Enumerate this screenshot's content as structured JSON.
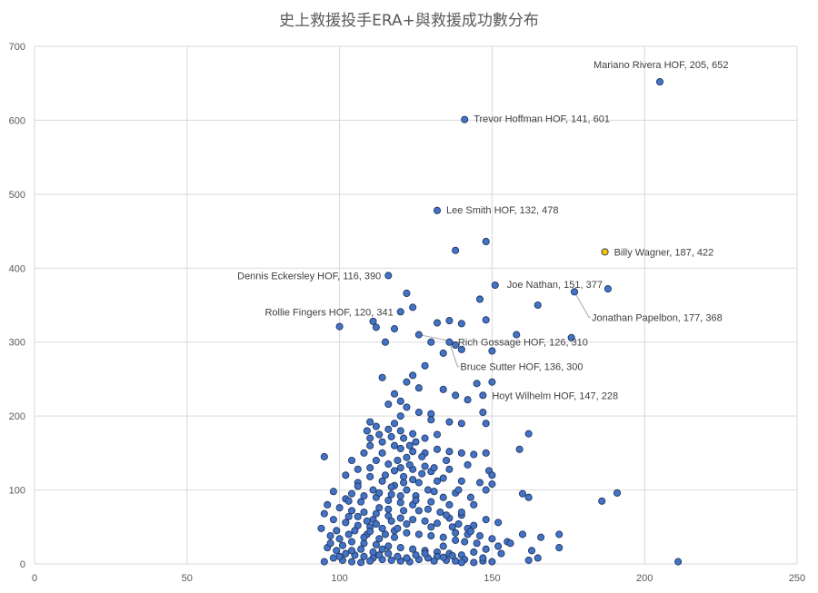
{
  "chart_data": {
    "type": "scatter",
    "title": "史上救援投手ERA+與救援成功數分布",
    "xlabel": "",
    "ylabel": "",
    "xlim": [
      0,
      250
    ],
    "ylim": [
      0,
      700
    ],
    "x_ticks": [
      "0",
      "50",
      "100",
      "150",
      "200",
      "250"
    ],
    "y_ticks": [
      "0",
      "100",
      "200",
      "300",
      "400",
      "500",
      "600",
      "700"
    ],
    "grid": true,
    "legend": "none",
    "colors": {
      "point": "#4472c4",
      "highlight": "#ffc000",
      "outline": "#1f3864",
      "grid": "#d9d9d9"
    },
    "labeled_points": [
      {
        "x": 205,
        "y": 652,
        "label": "Mariano Rivera HOF, 205, 652",
        "highlight": false
      },
      {
        "x": 141,
        "y": 601,
        "label": "Trevor Hoffman HOF, 141, 601",
        "highlight": false
      },
      {
        "x": 132,
        "y": 478,
        "label": "Lee Smith HOF, 132, 478",
        "highlight": false
      },
      {
        "x": 187,
        "y": 422,
        "label": "Billy Wagner, 187, 422",
        "highlight": true
      },
      {
        "x": 116,
        "y": 390,
        "label": "Dennis Eckersley HOF, 116, 390",
        "highlight": false
      },
      {
        "x": 151,
        "y": 377,
        "label": "Joe Nathan, 151, 377",
        "highlight": false
      },
      {
        "x": 177,
        "y": 368,
        "label": "Jonathan Papelbon, 177, 368",
        "highlight": false
      },
      {
        "x": 120,
        "y": 341,
        "label": "Rollie Fingers HOF, 120, 341",
        "highlight": false
      },
      {
        "x": 126,
        "y": 310,
        "label": "Rich Gossage HOF, 126, 310",
        "highlight": false
      },
      {
        "x": 136,
        "y": 300,
        "label": "Bruce Sutter HOF, 136, 300",
        "highlight": false
      },
      {
        "x": 147,
        "y": 228,
        "label": "Hoyt Wilhelm HOF, 147, 228",
        "highlight": false
      }
    ],
    "points": [
      [
        138,
        424
      ],
      [
        148,
        436
      ],
      [
        188,
        372
      ],
      [
        122,
        366
      ],
      [
        165,
        350
      ],
      [
        146,
        358
      ],
      [
        124,
        347
      ],
      [
        100,
        321
      ],
      [
        111,
        328
      ],
      [
        112,
        320
      ],
      [
        118,
        318
      ],
      [
        132,
        326
      ],
      [
        136,
        329
      ],
      [
        140,
        325
      ],
      [
        148,
        330
      ],
      [
        158,
        310
      ],
      [
        176,
        306
      ],
      [
        115,
        300
      ],
      [
        130,
        300
      ],
      [
        138,
        296
      ],
      [
        140,
        290
      ],
      [
        134,
        285
      ],
      [
        150,
        288
      ],
      [
        124,
        255
      ],
      [
        114,
        252
      ],
      [
        128,
        268
      ],
      [
        122,
        246
      ],
      [
        126,
        238
      ],
      [
        134,
        236
      ],
      [
        138,
        228
      ],
      [
        142,
        222
      ],
      [
        145,
        244
      ],
      [
        150,
        246
      ],
      [
        118,
        230
      ],
      [
        120,
        220
      ],
      [
        116,
        216
      ],
      [
        122,
        212
      ],
      [
        126,
        205
      ],
      [
        130,
        203
      ],
      [
        120,
        200
      ],
      [
        130,
        195
      ],
      [
        136,
        192
      ],
      [
        140,
        190
      ],
      [
        147,
        205
      ],
      [
        148,
        190
      ],
      [
        118,
        190
      ],
      [
        95,
        145
      ],
      [
        110,
        192
      ],
      [
        112,
        186
      ],
      [
        116,
        182
      ],
      [
        120,
        180
      ],
      [
        124,
        176
      ],
      [
        128,
        170
      ],
      [
        132,
        175
      ],
      [
        162,
        176
      ],
      [
        110,
        170
      ],
      [
        114,
        165
      ],
      [
        118,
        160
      ],
      [
        120,
        156
      ],
      [
        124,
        152
      ],
      [
        128,
        150
      ],
      [
        132,
        155
      ],
      [
        136,
        152
      ],
      [
        140,
        150
      ],
      [
        144,
        148
      ],
      [
        148,
        150
      ],
      [
        159,
        155
      ],
      [
        108,
        150
      ],
      [
        104,
        140
      ],
      [
        112,
        140
      ],
      [
        116,
        135
      ],
      [
        120,
        130
      ],
      [
        124,
        128
      ],
      [
        130,
        125
      ],
      [
        136,
        128
      ],
      [
        142,
        134
      ],
      [
        149,
        126
      ],
      [
        106,
        128
      ],
      [
        102,
        120
      ],
      [
        110,
        118
      ],
      [
        114,
        112
      ],
      [
        118,
        106
      ],
      [
        122,
        100
      ],
      [
        126,
        110
      ],
      [
        134,
        116
      ],
      [
        140,
        112
      ],
      [
        146,
        110
      ],
      [
        150,
        108
      ],
      [
        150,
        120
      ],
      [
        148,
        100
      ],
      [
        160,
        95
      ],
      [
        162,
        90
      ],
      [
        98,
        98
      ],
      [
        104,
        95
      ],
      [
        108,
        92
      ],
      [
        112,
        90
      ],
      [
        116,
        86
      ],
      [
        120,
        83
      ],
      [
        124,
        80
      ],
      [
        130,
        84
      ],
      [
        134,
        90
      ],
      [
        138,
        96
      ],
      [
        144,
        80
      ],
      [
        186,
        85
      ],
      [
        191,
        96
      ],
      [
        96,
        80
      ],
      [
        100,
        76
      ],
      [
        104,
        72
      ],
      [
        108,
        70
      ],
      [
        112,
        68
      ],
      [
        116,
        65
      ],
      [
        120,
        62
      ],
      [
        124,
        60
      ],
      [
        128,
        58
      ],
      [
        132,
        55
      ],
      [
        136,
        62
      ],
      [
        140,
        66
      ],
      [
        144,
        52
      ],
      [
        148,
        60
      ],
      [
        152,
        56
      ],
      [
        95,
        68
      ],
      [
        98,
        60
      ],
      [
        102,
        56
      ],
      [
        106,
        52
      ],
      [
        110,
        50
      ],
      [
        114,
        48
      ],
      [
        118,
        45
      ],
      [
        122,
        42
      ],
      [
        126,
        40
      ],
      [
        130,
        38
      ],
      [
        134,
        36
      ],
      [
        138,
        42
      ],
      [
        142,
        40
      ],
      [
        146,
        38
      ],
      [
        150,
        34
      ],
      [
        155,
        30
      ],
      [
        160,
        40
      ],
      [
        166,
        36
      ],
      [
        172,
        40
      ],
      [
        94,
        48
      ],
      [
        97,
        38
      ],
      [
        100,
        34
      ],
      [
        104,
        30
      ],
      [
        108,
        28
      ],
      [
        112,
        26
      ],
      [
        116,
        24
      ],
      [
        120,
        22
      ],
      [
        124,
        20
      ],
      [
        128,
        18
      ],
      [
        132,
        16
      ],
      [
        136,
        14
      ],
      [
        140,
        12
      ],
      [
        144,
        16
      ],
      [
        148,
        20
      ],
      [
        152,
        24
      ],
      [
        156,
        28
      ],
      [
        163,
        18
      ],
      [
        172,
        22
      ],
      [
        96,
        22
      ],
      [
        99,
        18
      ],
      [
        102,
        14
      ],
      [
        105,
        12
      ],
      [
        108,
        10
      ],
      [
        111,
        8
      ],
      [
        114,
        6
      ],
      [
        117,
        5
      ],
      [
        120,
        4
      ],
      [
        123,
        3
      ],
      [
        126,
        6
      ],
      [
        129,
        8
      ],
      [
        132,
        10
      ],
      [
        135,
        5
      ],
      [
        138,
        4
      ],
      [
        141,
        6
      ],
      [
        144,
        2
      ],
      [
        147,
        4
      ],
      [
        150,
        3
      ],
      [
        162,
        5
      ],
      [
        165,
        8
      ],
      [
        211,
        3
      ],
      [
        95,
        3
      ],
      [
        98,
        8
      ],
      [
        101,
        5
      ],
      [
        104,
        3
      ],
      [
        107,
        2
      ],
      [
        110,
        4
      ],
      [
        113,
        12
      ],
      [
        116,
        14
      ],
      [
        119,
        10
      ],
      [
        122,
        8
      ],
      [
        125,
        12
      ],
      [
        128,
        14
      ],
      [
        131,
        4
      ],
      [
        134,
        9
      ],
      [
        137,
        11
      ],
      [
        140,
        2
      ],
      [
        99,
        45
      ],
      [
        103,
        64
      ],
      [
        107,
        84
      ],
      [
        111,
        100
      ],
      [
        115,
        120
      ],
      [
        119,
        140
      ],
      [
        123,
        160
      ],
      [
        127,
        145
      ],
      [
        131,
        130
      ],
      [
        135,
        140
      ],
      [
        139,
        100
      ],
      [
        143,
        90
      ],
      [
        111,
        60
      ],
      [
        113,
        76
      ],
      [
        117,
        94
      ],
      [
        121,
        110
      ],
      [
        125,
        92
      ],
      [
        129,
        74
      ],
      [
        133,
        70
      ],
      [
        137,
        50
      ],
      [
        141,
        30
      ],
      [
        145,
        28
      ],
      [
        109,
        40
      ],
      [
        113,
        34
      ],
      [
        117,
        58
      ],
      [
        121,
        72
      ],
      [
        125,
        86
      ],
      [
        129,
        100
      ],
      [
        106,
        110
      ],
      [
        110,
        130
      ],
      [
        114,
        150
      ],
      [
        118,
        126
      ],
      [
        122,
        144
      ],
      [
        102,
        88
      ],
      [
        106,
        64
      ],
      [
        110,
        44
      ],
      [
        114,
        20
      ],
      [
        118,
        36
      ],
      [
        122,
        54
      ],
      [
        126,
        72
      ],
      [
        130,
        50
      ],
      [
        134,
        24
      ],
      [
        138,
        32
      ],
      [
        142,
        48
      ],
      [
        100,
        10
      ],
      [
        104,
        18
      ],
      [
        108,
        36
      ],
      [
        112,
        54
      ],
      [
        116,
        74
      ],
      [
        120,
        92
      ],
      [
        124,
        114
      ],
      [
        128,
        132
      ],
      [
        132,
        112
      ],
      [
        136,
        80
      ],
      [
        140,
        70
      ],
      [
        109,
        180
      ],
      [
        113,
        175
      ],
      [
        117,
        172
      ],
      [
        121,
        170
      ],
      [
        125,
        165
      ],
      [
        110,
        160
      ],
      [
        106,
        105
      ],
      [
        103,
        85
      ],
      [
        101,
        25
      ],
      [
        97,
        28
      ],
      [
        105,
        45
      ],
      [
        109,
        58
      ],
      [
        113,
        96
      ],
      [
        117,
        104
      ],
      [
        121,
        118
      ],
      [
        123,
        134
      ],
      [
        127,
        122
      ],
      [
        131,
        98
      ],
      [
        135,
        66
      ],
      [
        139,
        54
      ],
      [
        143,
        44
      ],
      [
        147,
        8
      ],
      [
        153,
        14
      ],
      [
        119,
        48
      ],
      [
        115,
        40
      ],
      [
        111,
        16
      ],
      [
        107,
        20
      ],
      [
        103,
        40
      ]
    ]
  }
}
